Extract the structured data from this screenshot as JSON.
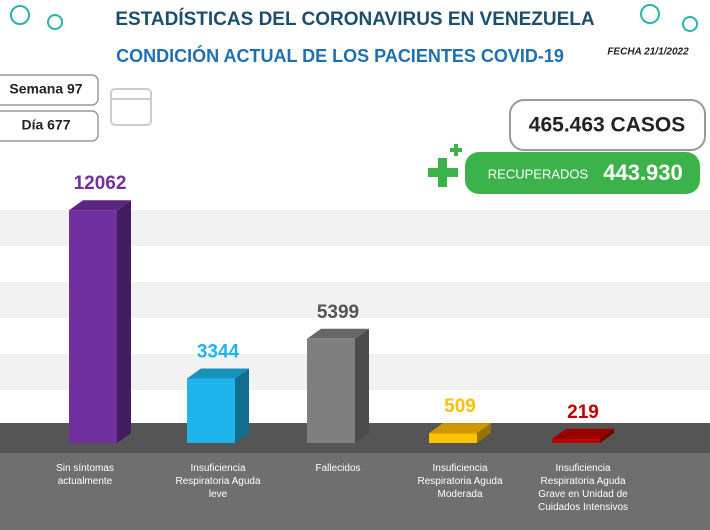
{
  "chart_data": {
    "type": "bar3d",
    "title": "ESTADÍSTICAS DEL CORONAVIRUS EN VENEZUELA",
    "subtitle": "CONDICIÓN ACTUAL DE LOS PACIENTES COVID-19",
    "date": "FECHA 21/1/2022",
    "week": "Semana 97",
    "day": "Día 677",
    "cases": "465.463 CASOS",
    "recovered_label": "RECUPERADOS",
    "recovered": "443.930",
    "categories": [
      "Sin síntomas actualmente",
      "Insuficiencia Respiratoria Aguda leve",
      "Fallecidos",
      "Insuficiencia Respiratoria Aguda Moderada",
      "Insuficiencia Respiratoria Aguda Grave en Unidad de Cuidados Intensivos"
    ],
    "values": [
      12062,
      3344,
      5399,
      509,
      219
    ],
    "colors": [
      "#7030a0",
      "#1fb5ec",
      "#7f7f7f",
      "#ffc000",
      "#c00000"
    ]
  }
}
